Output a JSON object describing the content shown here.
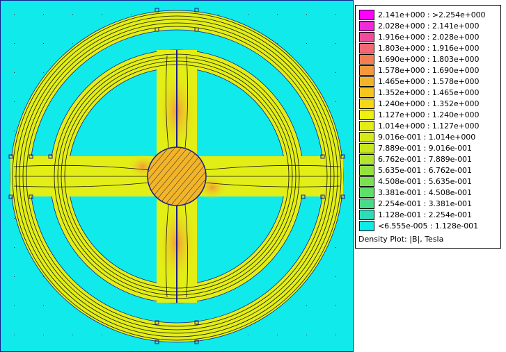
{
  "legend": {
    "caption": "Density Plot: |B|, Tesla",
    "entries": [
      {
        "label": "2.141e+000 : >2.254e+000",
        "color": "#ff00ff"
      },
      {
        "label": "2.028e+000 : 2.141e+000",
        "color": "#f02ad8"
      },
      {
        "label": "1.916e+000 : 2.028e+000",
        "color": "#f04c9e"
      },
      {
        "label": "1.803e+000 : 1.916e+000",
        "color": "#f26874"
      },
      {
        "label": "1.690e+000 : 1.803e+000",
        "color": "#f47e50"
      },
      {
        "label": "1.578e+000 : 1.690e+000",
        "color": "#f4983a"
      },
      {
        "label": "1.465e+000 : 1.578e+000",
        "color": "#f2b428"
      },
      {
        "label": "1.352e+000 : 1.465e+000",
        "color": "#f4c61e"
      },
      {
        "label": "1.240e+000 : 1.352e+000",
        "color": "#f6d814"
      },
      {
        "label": "1.127e+000 : 1.240e+000",
        "color": "#eef012"
      },
      {
        "label": "1.014e+000 : 1.127e+000",
        "color": "#e4ee14"
      },
      {
        "label": "9.016e-001 : 1.014e+000",
        "color": "#d6ea18"
      },
      {
        "label": "7.889e-001 : 9.016e-001",
        "color": "#c6e81c"
      },
      {
        "label": "6.762e-001 : 7.889e-001",
        "color": "#b2e62a"
      },
      {
        "label": "5.635e-001 : 6.762e-001",
        "color": "#96e23c"
      },
      {
        "label": "4.508e-001 : 5.635e-001",
        "color": "#7ce052"
      },
      {
        "label": "3.381e-001 : 4.508e-001",
        "color": "#60de6a"
      },
      {
        "label": "2.254e-001 : 3.381e-001",
        "color": "#48dc8a"
      },
      {
        "label": "1.128e-001 : 2.254e-001",
        "color": "#30dcb8"
      },
      {
        "label": "<6.555e-005 : 1.128e-001",
        "color": "#10eaea"
      }
    ]
  },
  "plot": {
    "background_color": "#10eaea",
    "iron_color": "#e2ee16",
    "core_color": "#f2b428",
    "boundary_color": "#1a1a8a"
  }
}
